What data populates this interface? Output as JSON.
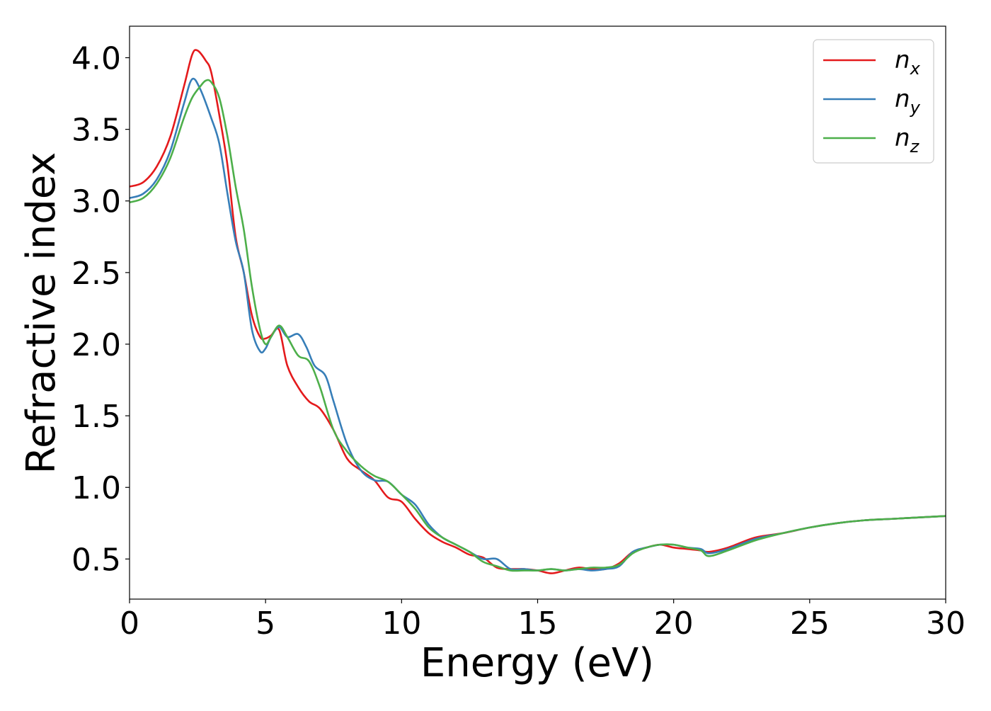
{
  "chart_data": {
    "type": "line",
    "xlabel": "Energy (eV)",
    "ylabel": "Refractive index",
    "xlim": [
      0,
      30
    ],
    "ylim": [
      0.22,
      4.22
    ],
    "xticks": [
      0,
      5,
      10,
      15,
      20,
      25,
      30
    ],
    "yticks": [
      0.5,
      1.0,
      1.5,
      2.0,
      2.5,
      3.0,
      3.5,
      4.0
    ],
    "xtick_labels": [
      "0",
      "5",
      "10",
      "15",
      "20",
      "25",
      "30"
    ],
    "ytick_labels": [
      "0.5",
      "1.0",
      "1.5",
      "2.0",
      "2.5",
      "3.0",
      "3.5",
      "4.0"
    ],
    "grid": false,
    "legend_position": "top-right",
    "series": [
      {
        "name": "n_x",
        "label_base": "n",
        "label_sub": "x",
        "color": "#e41a1c",
        "x": [
          0,
          0.5,
          1.0,
          1.5,
          2.0,
          2.3,
          2.5,
          2.8,
          3.0,
          3.3,
          3.6,
          3.9,
          4.2,
          4.5,
          4.8,
          5.0,
          5.2,
          5.5,
          5.8,
          6.2,
          6.6,
          7.0,
          7.5,
          8.0,
          8.5,
          9.0,
          9.5,
          10.0,
          10.5,
          11.0,
          11.5,
          12.0,
          12.5,
          13.0,
          13.5,
          14.0,
          14.5,
          15.0,
          15.5,
          16.0,
          16.5,
          17.0,
          17.5,
          18.0,
          18.5,
          19.0,
          19.5,
          20.0,
          20.5,
          21.0,
          21.3,
          22.0,
          23.0,
          24.0,
          25.0,
          26.0,
          27.0,
          28.0,
          29.0,
          30.0
        ],
        "y": [
          3.1,
          3.13,
          3.24,
          3.45,
          3.8,
          4.02,
          4.05,
          3.98,
          3.9,
          3.6,
          3.25,
          2.75,
          2.5,
          2.2,
          2.05,
          2.04,
          2.06,
          2.1,
          1.85,
          1.7,
          1.6,
          1.55,
          1.4,
          1.2,
          1.12,
          1.05,
          0.93,
          0.9,
          0.78,
          0.68,
          0.62,
          0.58,
          0.53,
          0.51,
          0.44,
          0.43,
          0.43,
          0.42,
          0.4,
          0.42,
          0.44,
          0.43,
          0.43,
          0.47,
          0.55,
          0.58,
          0.6,
          0.58,
          0.57,
          0.56,
          0.55,
          0.58,
          0.65,
          0.68,
          0.72,
          0.75,
          0.77,
          0.78,
          0.79,
          0.8
        ]
      },
      {
        "name": "n_y",
        "label_base": "n",
        "label_sub": "y",
        "color": "#377eb8",
        "x": [
          0,
          0.5,
          1.0,
          1.5,
          2.0,
          2.3,
          2.6,
          3.0,
          3.3,
          3.6,
          3.9,
          4.2,
          4.5,
          4.8,
          5.0,
          5.2,
          5.5,
          5.8,
          6.2,
          6.5,
          6.8,
          7.2,
          7.5,
          8.0,
          8.5,
          9.0,
          9.5,
          10.0,
          10.5,
          11.0,
          11.5,
          12.0,
          12.5,
          13.0,
          13.5,
          14.0,
          14.5,
          15.0,
          15.5,
          16.0,
          16.5,
          17.0,
          17.5,
          18.0,
          18.5,
          19.0,
          19.5,
          20.0,
          20.5,
          21.0,
          21.3,
          22.0,
          23.0,
          24.0,
          25.0,
          26.0,
          27.0,
          28.0,
          29.0,
          30.0
        ],
        "y": [
          3.02,
          3.05,
          3.15,
          3.35,
          3.68,
          3.85,
          3.78,
          3.58,
          3.4,
          3.05,
          2.72,
          2.5,
          2.1,
          1.95,
          1.97,
          2.05,
          2.12,
          2.05,
          2.07,
          1.98,
          1.85,
          1.78,
          1.6,
          1.3,
          1.12,
          1.05,
          1.04,
          0.95,
          0.88,
          0.74,
          0.65,
          0.6,
          0.55,
          0.5,
          0.5,
          0.43,
          0.43,
          0.42,
          0.43,
          0.42,
          0.43,
          0.42,
          0.43,
          0.45,
          0.55,
          0.58,
          0.6,
          0.6,
          0.58,
          0.57,
          0.54,
          0.57,
          0.64,
          0.68,
          0.72,
          0.75,
          0.77,
          0.78,
          0.79,
          0.8
        ]
      },
      {
        "name": "n_z",
        "label_base": "n",
        "label_sub": "z",
        "color": "#4daf4a",
        "x": [
          0,
          0.5,
          1.0,
          1.5,
          2.0,
          2.3,
          2.6,
          2.8,
          3.0,
          3.3,
          3.6,
          3.9,
          4.2,
          4.5,
          4.8,
          5.0,
          5.2,
          5.5,
          5.8,
          6.2,
          6.6,
          7.0,
          7.5,
          8.0,
          8.5,
          9.0,
          9.5,
          10.0,
          10.5,
          11.0,
          11.5,
          12.0,
          12.5,
          13.0,
          13.5,
          14.0,
          14.5,
          15.0,
          15.5,
          16.0,
          16.5,
          17.0,
          17.5,
          18.0,
          18.5,
          19.0,
          19.5,
          20.0,
          20.5,
          21.0,
          21.3,
          22.0,
          23.0,
          24.0,
          25.0,
          26.0,
          27.0,
          28.0,
          29.0,
          30.0
        ],
        "y": [
          2.99,
          3.02,
          3.12,
          3.3,
          3.58,
          3.72,
          3.8,
          3.84,
          3.83,
          3.72,
          3.45,
          3.1,
          2.8,
          2.4,
          2.1,
          2.0,
          2.05,
          2.13,
          2.05,
          1.92,
          1.88,
          1.7,
          1.4,
          1.25,
          1.15,
          1.08,
          1.04,
          0.95,
          0.85,
          0.72,
          0.65,
          0.6,
          0.55,
          0.48,
          0.45,
          0.42,
          0.42,
          0.42,
          0.43,
          0.42,
          0.43,
          0.44,
          0.44,
          0.46,
          0.54,
          0.58,
          0.6,
          0.6,
          0.58,
          0.56,
          0.52,
          0.56,
          0.63,
          0.68,
          0.72,
          0.75,
          0.77,
          0.78,
          0.79,
          0.8
        ]
      }
    ]
  }
}
